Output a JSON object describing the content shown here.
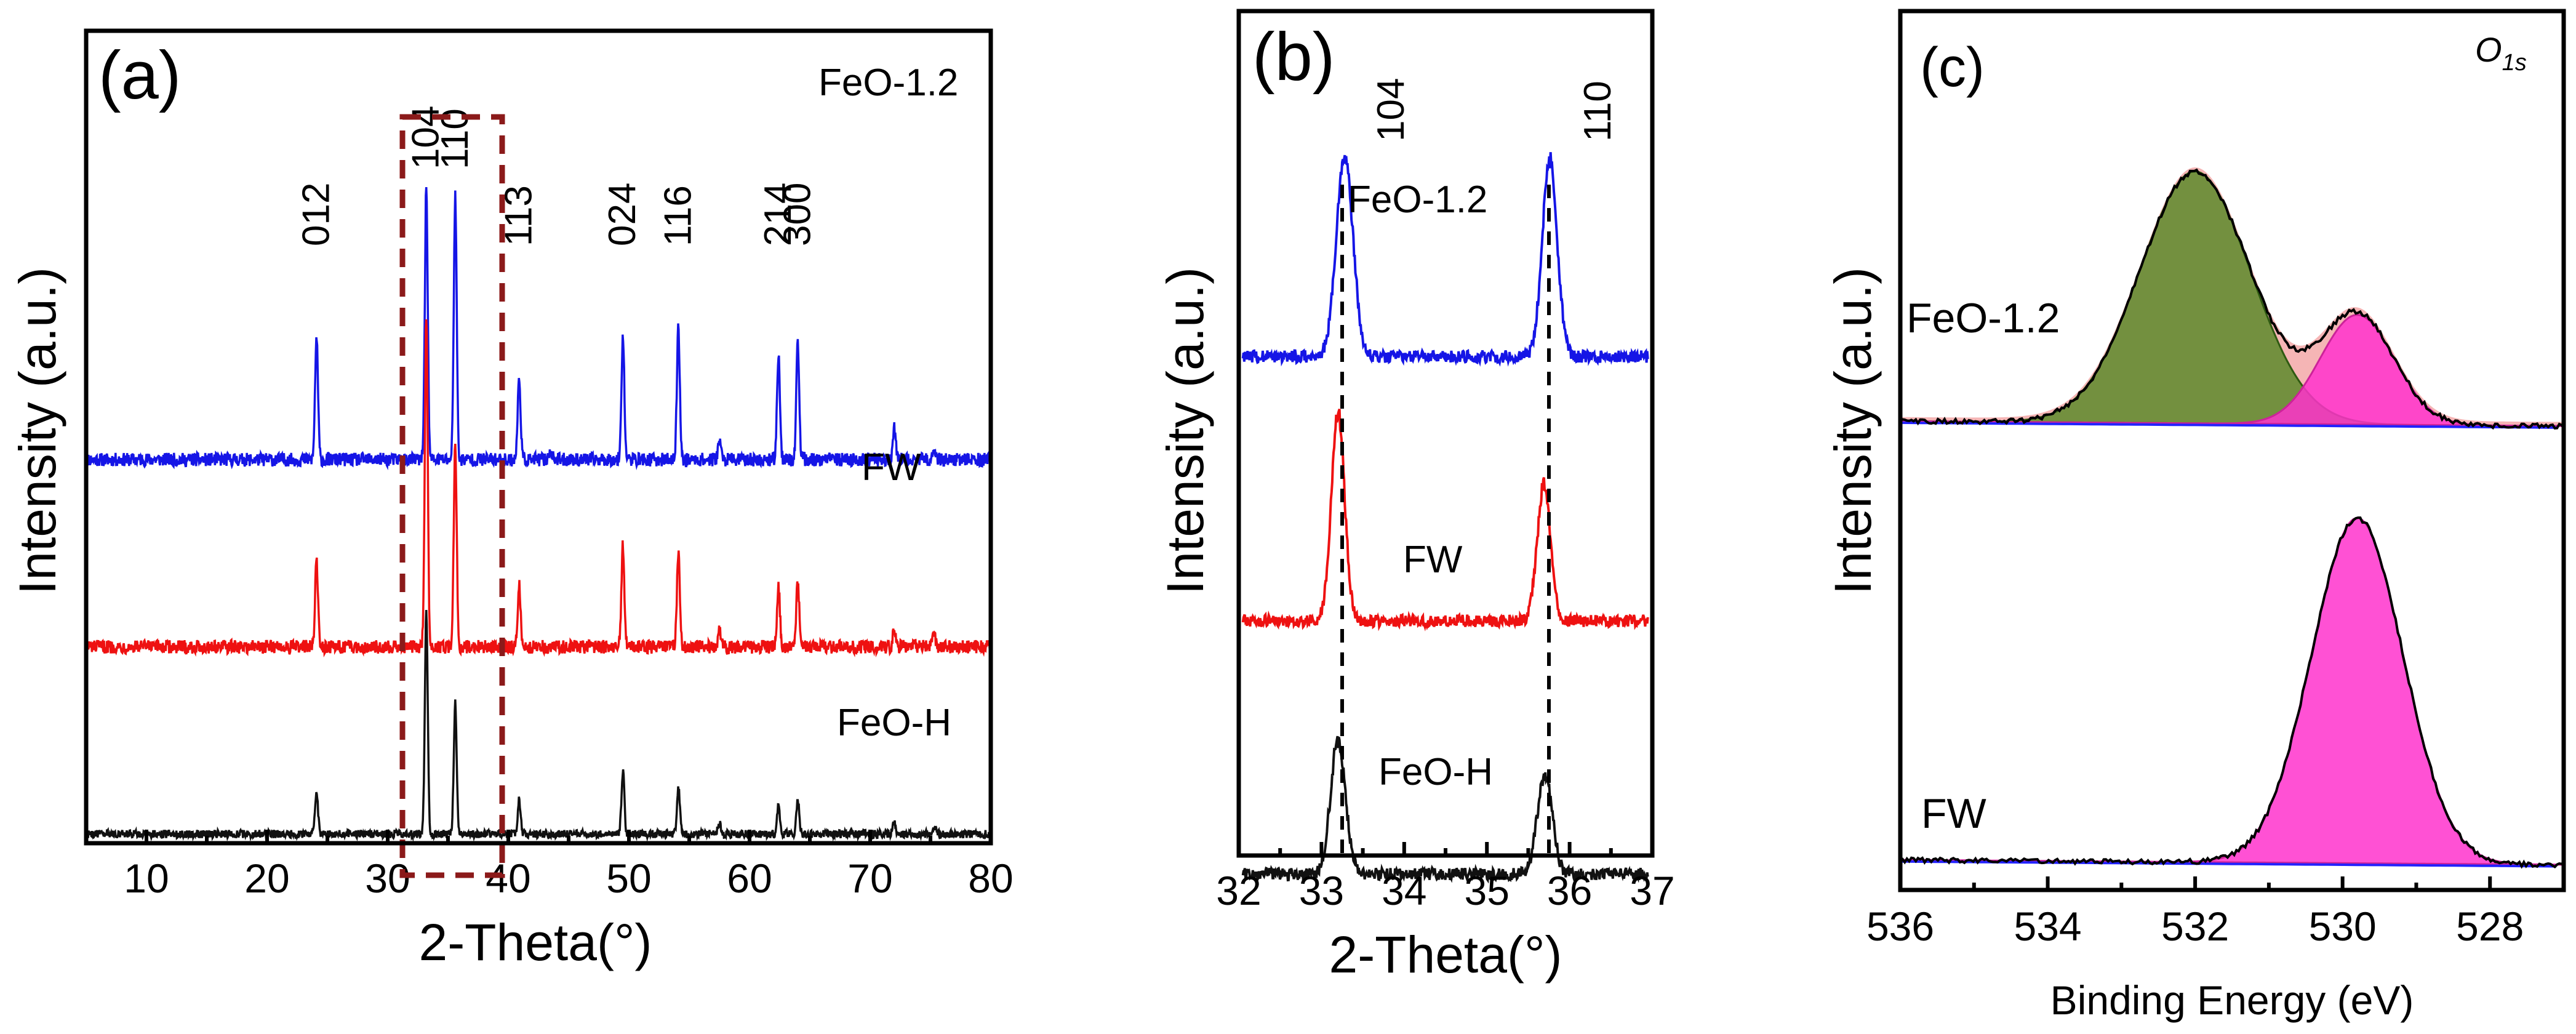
{
  "colors": {
    "FeO-1.2": "#1515e6",
    "FW": "#ee1111",
    "FeO-H": "#111111",
    "green_fill": "#5c8a2a",
    "magenta_fill": "#ff33cc",
    "envelope_fill": "#f5b5b5",
    "baseline": "#2222ff",
    "box": "#8b1a1a"
  },
  "chart_data": [
    {
      "panel": "(a)",
      "type": "line",
      "title": "",
      "xlabel": "2-Theta(°)",
      "ylabel": "Intensity (a.u.)",
      "xlim": [
        5,
        80
      ],
      "xticks": [
        10,
        20,
        30,
        40,
        50,
        60,
        70,
        80
      ],
      "xticklabels": [
        "10",
        "20",
        "30",
        "40",
        "50",
        "60",
        "70",
        "80"
      ],
      "legend_labels": [
        "FeO-1.2",
        "FW",
        "FeO-H"
      ],
      "peak_labels": [
        {
          "label": "012",
          "x": 24.1
        },
        {
          "label": "104",
          "x": 33.2
        },
        {
          "label": "110",
          "x": 35.6
        },
        {
          "label": "113",
          "x": 40.9
        },
        {
          "label": "024",
          "x": 49.5
        },
        {
          "label": "116",
          "x": 54.1
        },
        {
          "label": "214",
          "x": 62.4
        },
        {
          "label": "300",
          "x": 64.0
        }
      ],
      "highlight_range": [
        30.5,
        38.5
      ],
      "series": [
        {
          "name": "FeO-1.2",
          "offset": 2.2,
          "baseline_noise": 0.05,
          "peaks": [
            [
              24.1,
              0.72
            ],
            [
              33.2,
              1.6
            ],
            [
              35.6,
              1.55
            ],
            [
              40.9,
              0.48
            ],
            [
              43.5,
              0.05
            ],
            [
              49.5,
              0.72
            ],
            [
              54.1,
              0.78
            ],
            [
              57.5,
              0.12
            ],
            [
              62.4,
              0.62
            ],
            [
              64.0,
              0.68
            ],
            [
              72.0,
              0.18
            ],
            [
              75.3,
              0.08
            ]
          ]
        },
        {
          "name": "FW",
          "offset": 1.1,
          "baseline_noise": 0.05,
          "peaks": [
            [
              24.1,
              0.5
            ],
            [
              33.2,
              1.95
            ],
            [
              35.6,
              1.2
            ],
            [
              40.9,
              0.36
            ],
            [
              49.5,
              0.6
            ],
            [
              54.1,
              0.55
            ],
            [
              57.5,
              0.1
            ],
            [
              62.4,
              0.35
            ],
            [
              64.0,
              0.38
            ],
            [
              72.0,
              0.12
            ],
            [
              75.3,
              0.08
            ]
          ]
        },
        {
          "name": "FeO-H",
          "offset": 0.0,
          "baseline_noise": 0.03,
          "peaks": [
            [
              24.1,
              0.24
            ],
            [
              33.2,
              1.3
            ],
            [
              35.6,
              0.77
            ],
            [
              40.9,
              0.2
            ],
            [
              49.5,
              0.37
            ],
            [
              54.1,
              0.28
            ],
            [
              57.5,
              0.06
            ],
            [
              62.4,
              0.17
            ],
            [
              64.0,
              0.2
            ],
            [
              72.0,
              0.06
            ],
            [
              75.3,
              0.05
            ]
          ]
        }
      ]
    },
    {
      "panel": "(b)",
      "type": "line",
      "title": "",
      "xlabel": "2-Theta(°)",
      "ylabel": "Intensity (a.u.)",
      "xlim": [
        32,
        37
      ],
      "xticks": [
        32,
        33,
        34,
        35,
        36,
        37
      ],
      "xticklabels": [
        "32",
        "33",
        "34",
        "35",
        "36",
        "37"
      ],
      "legend_labels": [
        "FeO-1.2",
        "FW",
        "FeO-H"
      ],
      "peak_labels": [
        {
          "label": "104",
          "x": 33.25
        },
        {
          "label": "110",
          "x": 35.75
        }
      ],
      "reference_lines": [
        33.25,
        35.75
      ],
      "series": [
        {
          "name": "FeO-1.2",
          "offset": 2.35,
          "peaks": [
            [
              33.28,
              0.92,
              0.1
            ],
            [
              35.76,
              0.9,
              0.09
            ]
          ]
        },
        {
          "name": "FW",
          "offset": 1.15,
          "peaks": [
            [
              33.2,
              0.95,
              0.08
            ],
            [
              35.69,
              0.62,
              0.08
            ]
          ]
        },
        {
          "name": "FeO-H",
          "offset": 0.0,
          "peaks": [
            [
              33.2,
              0.6,
              0.09
            ],
            [
              35.7,
              0.45,
              0.09
            ]
          ]
        }
      ]
    },
    {
      "panel": "(c)",
      "type": "area",
      "title": "O1s",
      "title_main": "O",
      "title_sub": "1s",
      "xlabel": "Binding Energy (eV)",
      "ylabel": "Intensity (a.u.)",
      "xlim": [
        536,
        527
      ],
      "xticks": [
        536,
        534,
        532,
        530,
        528
      ],
      "xticklabels": [
        "536",
        "534",
        "532",
        "530",
        "528"
      ],
      "legend_labels": [
        "FeO-1.2",
        "FW"
      ],
      "series": [
        {
          "name": "FeO-1.2",
          "offset": 1.08,
          "components": [
            {
              "name": "532.0 eV component",
              "center": 532.0,
              "height": 0.62,
              "sigma": 0.75,
              "color": "green"
            },
            {
              "name": "529.8 eV component",
              "center": 529.8,
              "height": 0.27,
              "sigma": 0.5,
              "color": "magenta"
            }
          ]
        },
        {
          "name": "FW",
          "offset": 0.0,
          "components": [
            {
              "name": "529.8 eV component",
              "center": 529.8,
              "height": 0.85,
              "sigma": 0.62,
              "color": "magenta"
            }
          ]
        }
      ]
    }
  ]
}
